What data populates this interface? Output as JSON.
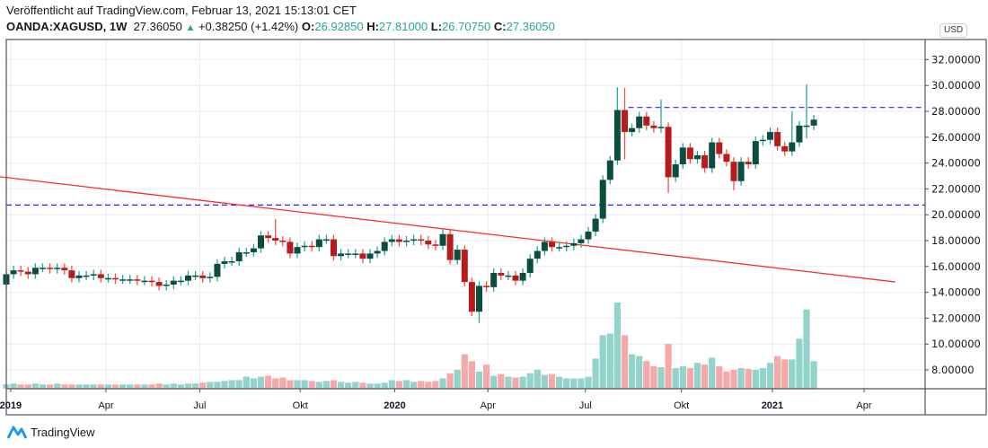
{
  "header": {
    "published": "Veröffentlicht auf TradingView.com, Februar 13, 2021 15:13:01 CET",
    "symbol": "OANDA:XAGUSD, 1W",
    "last": "27.36050",
    "change": "+0.38250 (+1.42%)",
    "o_label": "O:",
    "o": "26.92850",
    "h_label": "H:",
    "h": "27.81000",
    "l_label": "L:",
    "l": "26.70750",
    "c_label": "C:",
    "c": "27.36050"
  },
  "currency_badge": "USD",
  "footer": {
    "brand": "TradingView"
  },
  "colors": {
    "up_body": "#0b4d3f",
    "up_wick": "#26a69a",
    "down_body": "#b71c1c",
    "down_wick": "#ef5350",
    "up_vol": "#92d3cb",
    "down_vol": "#f7a9a9",
    "trend": "#ff2a2a",
    "level": "#2424ff"
  },
  "chart_data": {
    "type": "candlestick",
    "interval": "1W",
    "first_week": "2018-12-28",
    "first_open": 14.6,
    "close": [
      15.4,
      15.7,
      15.6,
      15.4,
      15.9,
      15.9,
      15.8,
      15.9,
      15.7,
      15.1,
      15.3,
      15.3,
      15.4,
      15.1,
      15.1,
      15.0,
      15.0,
      15.0,
      14.9,
      14.9,
      14.8,
      14.5,
      14.6,
      14.9,
      14.9,
      15.3,
      15.3,
      15.1,
      15.2,
      16.2,
      16.4,
      16.4,
      17.1,
      17.1,
      17.4,
      18.4,
      18.2,
      18.0,
      17.9,
      17.0,
      17.5,
      17.6,
      17.5,
      18.1,
      18.1,
      16.8,
      17.0,
      17.0,
      17.0,
      16.6,
      17.0,
      17.2,
      17.9,
      18.1,
      17.9,
      18.0,
      18.1,
      18.0,
      17.7,
      17.6,
      18.5,
      16.5,
      17.3,
      14.8,
      12.5,
      14.5,
      14.4,
      15.5,
      15.3,
      15.3,
      14.9,
      15.5,
      16.6,
      17.2,
      17.9,
      17.5,
      17.5,
      17.6,
      17.8,
      18.1,
      18.7,
      19.7,
      22.7,
      24.2,
      28.1,
      26.4,
      26.7,
      27.6,
      26.9,
      26.7,
      26.8,
      22.9,
      23.9,
      25.2,
      24.3,
      24.6,
      23.6,
      25.6,
      24.7,
      24.1,
      22.6,
      24.1,
      23.9,
      25.7,
      25.8,
      26.4,
      25.3,
      24.9,
      25.6,
      26.9,
      26.9,
      27.3605
    ],
    "wick_overrides": [
      {
        "index": 37,
        "high": 19.65
      },
      {
        "index": 65,
        "low": 11.64
      },
      {
        "index": 84,
        "high": 29.85
      },
      {
        "index": 85,
        "high": 29.8,
        "low": 24.3
      },
      {
        "index": 90,
        "high": 28.9
      },
      {
        "index": 91,
        "low": 21.7
      },
      {
        "index": 100,
        "low": 21.9
      },
      {
        "index": 108,
        "high": 28.0
      },
      {
        "index": 110,
        "high": 30.1,
        "low": 25.9
      }
    ],
    "volume_relative": [
      5,
      6,
      5,
      5,
      6,
      5,
      5,
      6,
      5,
      5,
      5,
      5,
      5,
      5,
      5,
      5,
      5,
      5,
      5,
      5,
      5,
      6,
      5,
      6,
      5,
      6,
      6,
      7,
      8,
      8,
      9,
      10,
      10,
      14,
      12,
      14,
      15,
      12,
      13,
      10,
      10,
      10,
      9,
      8,
      9,
      10,
      8,
      7,
      8,
      7,
      6,
      6,
      7,
      10,
      9,
      10,
      8,
      9,
      8,
      9,
      12,
      18,
      22,
      40,
      32,
      20,
      28,
      15,
      17,
      14,
      13,
      14,
      18,
      22,
      16,
      17,
      14,
      12,
      12,
      12,
      14,
      35,
      62,
      64,
      100,
      62,
      40,
      38,
      32,
      26,
      25,
      52,
      24,
      26,
      24,
      30,
      28,
      36,
      26,
      20,
      22,
      24,
      23,
      22,
      24,
      30,
      38,
      34,
      34,
      58,
      92,
      32
    ],
    "y_ticks": [
      "8.00000",
      "10.00000",
      "12.00000",
      "14.00000",
      "16.00000",
      "18.00000",
      "20.00000",
      "22.00000",
      "24.00000",
      "26.00000",
      "28.00000",
      "30.00000",
      "32.00000"
    ],
    "y_tick_values": [
      8,
      10,
      12,
      14,
      16,
      18,
      20,
      22,
      24,
      26,
      28,
      30,
      32
    ],
    "x_ticks": [
      {
        "label": "2019",
        "week": 0.6,
        "bold": true
      },
      {
        "label": "Apr",
        "week": 13.7
      },
      {
        "label": "Jul",
        "week": 26.6
      },
      {
        "label": "Okt",
        "week": 40.4
      },
      {
        "label": "2020",
        "week": 53.4,
        "bold": true
      },
      {
        "label": "Apr",
        "week": 66.2
      },
      {
        "label": "Jul",
        "week": 79.6
      },
      {
        "label": "Okt",
        "week": 92.8
      },
      {
        "label": "2021",
        "week": 105.3,
        "bold": true
      },
      {
        "label": "Apr",
        "week": 117.9
      }
    ],
    "horizontal_levels": [
      {
        "price": 28.3,
        "from_week": 85.5
      },
      {
        "price": 20.75,
        "from_week": -1
      }
    ],
    "trend_line": {
      "from": {
        "week": -1,
        "price": 22.95
      },
      "to": {
        "week": 122.2,
        "price": 14.8
      }
    },
    "ylim": [
      6.6,
      33.5
    ]
  }
}
